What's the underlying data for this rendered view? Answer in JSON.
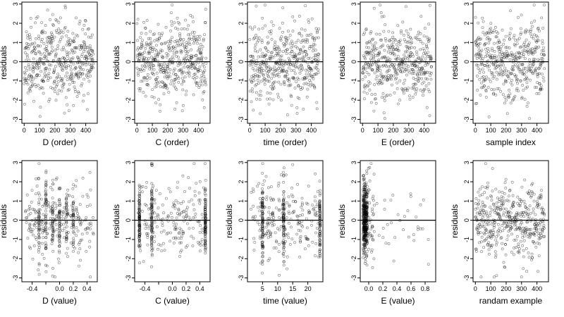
{
  "chart_data": [
    {
      "type": "scatter",
      "xlabel": "D (order)",
      "ylabel": "residuals",
      "xlim": [
        -15,
        475
      ],
      "ylim": [
        -3.2,
        3.1
      ],
      "xticks": [
        0,
        100,
        200,
        300,
        400
      ],
      "xtick_labels": [
        "0",
        "100",
        "200",
        "300",
        "400"
      ],
      "yticks": [
        -3,
        -2,
        -1,
        0,
        1,
        2,
        3
      ],
      "ytick_labels": [
        "-3",
        "-2",
        "-1",
        "0",
        "1",
        "2",
        "3"
      ],
      "reference_line": 0,
      "points": {
        "gen": "order",
        "n": 450,
        "seed": 11
      }
    },
    {
      "type": "scatter",
      "xlabel": "C (order)",
      "ylabel": "residuals",
      "xlim": [
        -15,
        475
      ],
      "ylim": [
        -3.2,
        3.1
      ],
      "xticks": [
        0,
        100,
        200,
        300,
        400
      ],
      "xtick_labels": [
        "0",
        "100",
        "200",
        "300",
        "400"
      ],
      "yticks": [
        -3,
        -2,
        -1,
        0,
        1,
        2,
        3
      ],
      "ytick_labels": [
        "-3",
        "-2",
        "-1",
        "0",
        "1",
        "2",
        "3"
      ],
      "reference_line": 0,
      "points": {
        "gen": "order",
        "n": 450,
        "seed": 23
      }
    },
    {
      "type": "scatter",
      "xlabel": "time (order)",
      "ylabel": "residuals",
      "xlim": [
        -15,
        475
      ],
      "ylim": [
        -3.2,
        3.1
      ],
      "xticks": [
        0,
        100,
        200,
        300,
        400
      ],
      "xtick_labels": [
        "0",
        "100",
        "200",
        "300",
        "400"
      ],
      "yticks": [
        -3,
        -2,
        -1,
        0,
        1,
        2,
        3
      ],
      "ytick_labels": [
        "-3",
        "-2",
        "-1",
        "0",
        "1",
        "2",
        "3"
      ],
      "reference_line": 0,
      "points": {
        "gen": "order",
        "n": 450,
        "seed": 37
      }
    },
    {
      "type": "scatter",
      "xlabel": "E (order)",
      "ylabel": "residuals",
      "xlim": [
        -15,
        475
      ],
      "ylim": [
        -3.2,
        3.1
      ],
      "xticks": [
        0,
        100,
        200,
        300,
        400
      ],
      "xtick_labels": [
        "0",
        "100",
        "200",
        "300",
        "400"
      ],
      "yticks": [
        -3,
        -2,
        -1,
        0,
        1,
        2,
        3
      ],
      "ytick_labels": [
        "-3",
        "-2",
        "-1",
        "0",
        "1",
        "2",
        "3"
      ],
      "reference_line": 0,
      "points": {
        "gen": "order",
        "n": 450,
        "seed": 41
      }
    },
    {
      "type": "scatter",
      "xlabel": "sample index",
      "ylabel": "residuals",
      "xlim": [
        -15,
        475
      ],
      "ylim": [
        -3.2,
        3.1
      ],
      "xticks": [
        0,
        100,
        200,
        300,
        400
      ],
      "xtick_labels": [
        "0",
        "100",
        "200",
        "300",
        "400"
      ],
      "yticks": [
        -3,
        -2,
        -1,
        0,
        1,
        2,
        3
      ],
      "ytick_labels": [
        "-3",
        "-2",
        "-1",
        "0",
        "1",
        "2",
        "3"
      ],
      "reference_line": 0,
      "points": {
        "gen": "order",
        "n": 450,
        "seed": 53
      }
    },
    {
      "type": "scatter",
      "xlabel": "D (value)",
      "ylabel": "residuals",
      "xlim": [
        -0.55,
        0.55
      ],
      "ylim": [
        -3.2,
        3.1
      ],
      "xticks": [
        -0.4,
        -0.2,
        0.0,
        0.2,
        0.4
      ],
      "xtick_labels": [
        "-0.4",
        "",
        "0.0",
        "0.2",
        "0.4"
      ],
      "yticks": [
        -3,
        -2,
        -1,
        0,
        1,
        2,
        3
      ],
      "ytick_labels": [
        "-3",
        "-2",
        "-1",
        "0",
        "1",
        "2",
        "3"
      ],
      "reference_line": 0,
      "points": {
        "gen": "clustered",
        "n": 450,
        "seed": 61,
        "centers": [
          -0.3,
          -0.2,
          -0.1,
          0.0,
          0.1,
          0.2
        ],
        "x_range": [
          -0.5,
          0.5
        ]
      }
    },
    {
      "type": "scatter",
      "xlabel": "C (value)",
      "ylabel": "residuals",
      "xlim": [
        -0.55,
        0.55
      ],
      "ylim": [
        -3.2,
        3.1
      ],
      "xticks": [
        -0.4,
        -0.2,
        0.0,
        0.2,
        0.4
      ],
      "xtick_labels": [
        "-0.4",
        "",
        "0.0",
        "0.2",
        "0.4"
      ],
      "yticks": [
        -3,
        -2,
        -1,
        0,
        1,
        2,
        3
      ],
      "ytick_labels": [
        "-3",
        "-2",
        "-1",
        "0",
        "1",
        "2",
        "3"
      ],
      "reference_line": 0,
      "points": {
        "gen": "clustered",
        "n": 450,
        "seed": 71,
        "centers": [
          -0.48,
          -0.3,
          0.48
        ],
        "x_range": [
          -0.5,
          0.5
        ]
      }
    },
    {
      "type": "scatter",
      "xlabel": "time (value)",
      "ylabel": "residuals",
      "xlim": [
        0,
        25
      ],
      "ylim": [
        -3.2,
        3.1
      ],
      "xticks": [
        5,
        10,
        15,
        20
      ],
      "xtick_labels": [
        "5",
        "10",
        "15",
        "20"
      ],
      "yticks": [
        -3,
        -2,
        -1,
        0,
        1,
        2,
        3
      ],
      "ytick_labels": [
        "-3",
        "-2",
        "-1",
        "0",
        "1",
        "2",
        "3"
      ],
      "reference_line": 0,
      "points": {
        "gen": "clustered",
        "n": 450,
        "seed": 83,
        "centers": [
          5,
          12,
          24
        ],
        "x_range": [
          1,
          24
        ]
      }
    },
    {
      "type": "scatter",
      "xlabel": "E (value)",
      "ylabel": "residuals",
      "xlim": [
        -0.12,
        0.95
      ],
      "ylim": [
        -3.2,
        3.1
      ],
      "xticks": [
        0.0,
        0.2,
        0.4,
        0.6,
        0.8
      ],
      "xtick_labels": [
        "0.0",
        "0.2",
        "0.4",
        "0.6",
        "0.8"
      ],
      "yticks": [
        -3,
        -2,
        -1,
        0,
        1,
        2,
        3
      ],
      "ytick_labels": [
        "-3",
        "-2",
        "-1",
        "0",
        "1",
        "2",
        "3"
      ],
      "reference_line": 0,
      "points": {
        "gen": "skewed",
        "n": 450,
        "seed": 97,
        "x_min": -0.08,
        "tail_max": 0.88
      }
    },
    {
      "type": "scatter",
      "xlabel": "randam example",
      "ylabel": "residuals",
      "xlim": [
        -15,
        475
      ],
      "ylim": [
        -3.2,
        3.1
      ],
      "xticks": [
        0,
        100,
        200,
        300,
        400
      ],
      "xtick_labels": [
        "0",
        "100",
        "200",
        "300",
        "400"
      ],
      "yticks": [
        -3,
        -2,
        -1,
        0,
        1,
        2,
        3
      ],
      "ytick_labels": [
        "-3",
        "-2",
        "-1",
        "0",
        "1",
        "2",
        "3"
      ],
      "reference_line": 0,
      "points": {
        "gen": "order",
        "n": 450,
        "seed": 109
      }
    }
  ]
}
